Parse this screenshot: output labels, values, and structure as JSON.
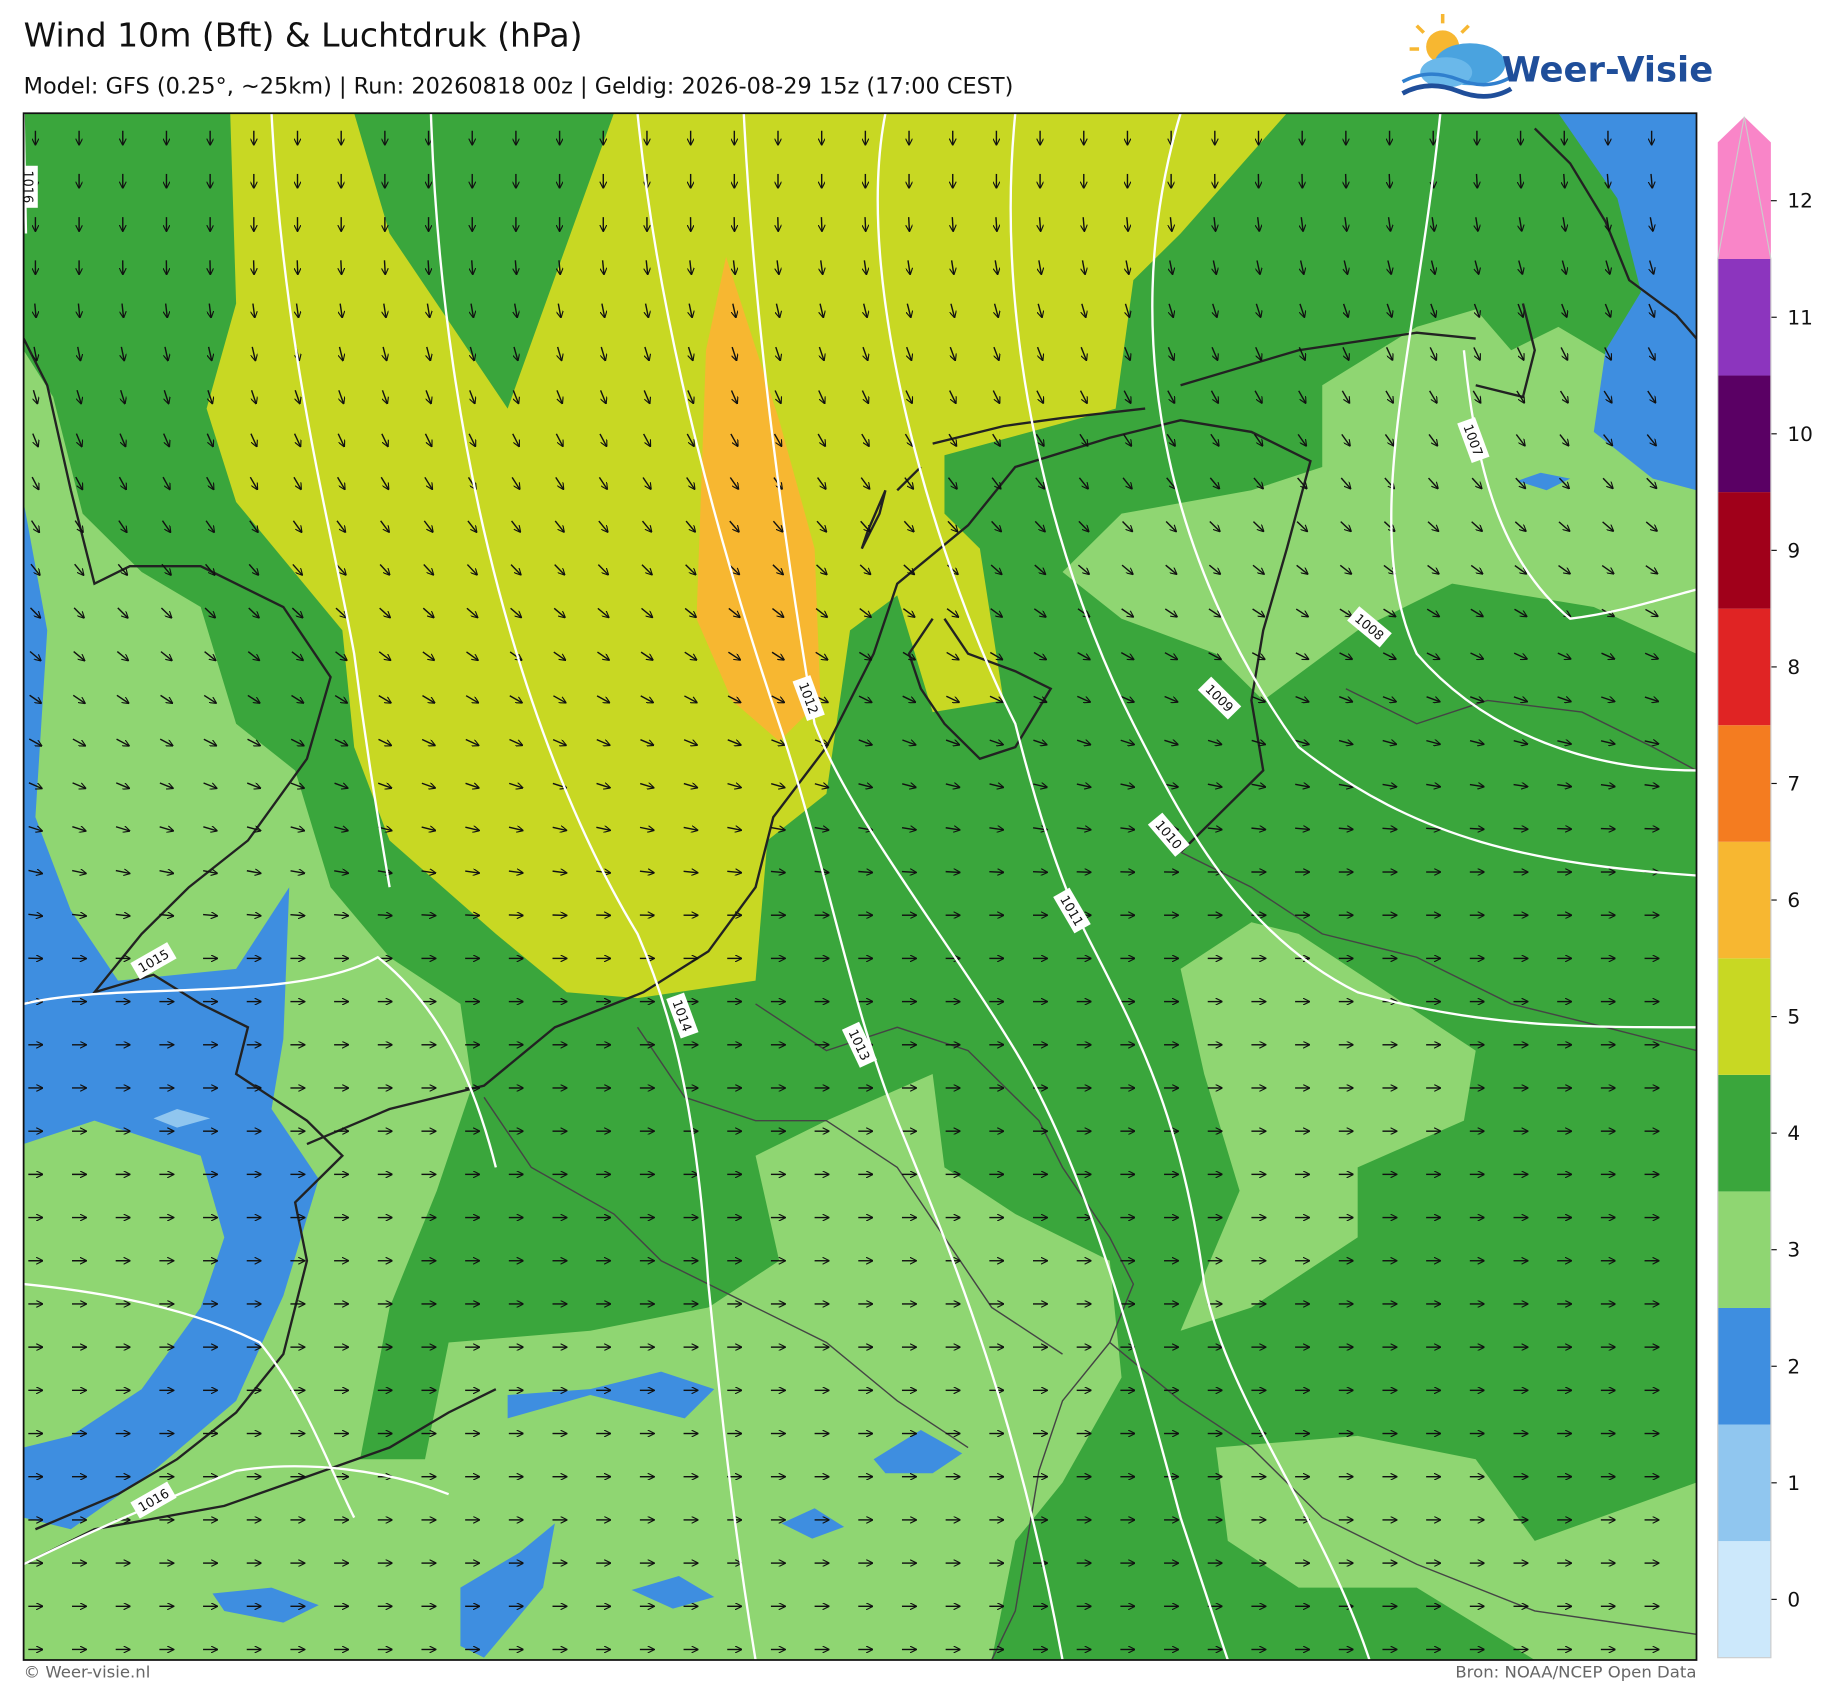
{
  "header": {
    "title": "Wind 10m (Bft) & Luchtdruk (hPa)",
    "subtitle": "Model: GFS (0.25°, ~25km)  |  Run: 20260818 00z  |  Geldig: 2026-08-29 15z (17:00 CEST)"
  },
  "logo": {
    "text": "Weer-Visie"
  },
  "isobars": {
    "labels": [
      "1016",
      "1015",
      "1014",
      "1013",
      "1012",
      "1011",
      "1010",
      "1009",
      "1008",
      "1007",
      "1016"
    ]
  },
  "colorbar": {
    "ticks": [
      0,
      1,
      2,
      3,
      4,
      5,
      6,
      7,
      8,
      9,
      10,
      11,
      12
    ],
    "colors": [
      "#cce8fb",
      "#90c6ef",
      "#3e8ee0",
      "#8fd672",
      "#3aa63c",
      "#c8d823",
      "#f7b731",
      "#f47c20",
      "#e02424",
      "#a0001a",
      "#5a0064",
      "#8c35be",
      "#f985c8"
    ]
  },
  "footer": {
    "left": "© Weer-visie.nl",
    "right": "Bron: NOAA/NCEP Open Data"
  }
}
